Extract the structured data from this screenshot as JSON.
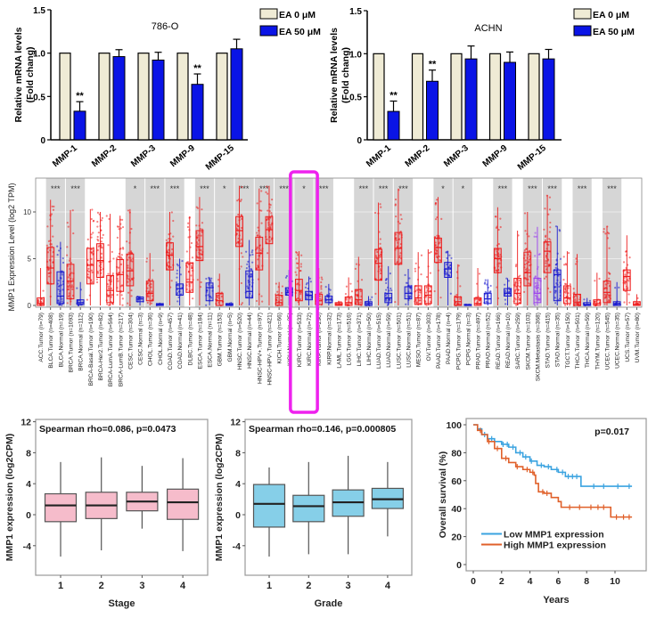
{
  "colors": {
    "ea0": "#efebd5",
    "ea50": "#0a14e6",
    "tumor": "#ee1c1c",
    "normal": "#1a1ad0",
    "metastasis": "#9b40ee",
    "highlight": "#ee22ee",
    "pink": "#f6bccb",
    "blue_box": "#86cfe8",
    "km_low": "#3aa3e0",
    "km_high": "#e0602a"
  },
  "chart_data": [
    {
      "type": "bar",
      "title": "786-O",
      "ylabel": "Relative mRNA levels\n(Fold chang)",
      "ylim": [
        0,
        1.5
      ],
      "yticks": [
        "0",
        "0.5",
        "1.0",
        "1.5"
      ],
      "categories": [
        "MMP-1",
        "MMP-2",
        "MMP-3",
        "MMP-9",
        "MMP-15"
      ],
      "series": [
        {
          "name": "EA 0 μM",
          "values": [
            1,
            1,
            1,
            1,
            1
          ]
        },
        {
          "name": "EA 50 μM",
          "values": [
            0.33,
            0.96,
            0.92,
            0.64,
            1.05
          ],
          "errors": [
            0.11,
            0.08,
            0.09,
            0.12,
            0.11
          ]
        }
      ],
      "annotations": [
        "**",
        "",
        "",
        "**",
        ""
      ]
    },
    {
      "type": "bar",
      "title": "ACHN",
      "ylabel": "Relative mRNA levels\n(Fold chang)",
      "ylim": [
        0,
        1.5
      ],
      "yticks": [
        "0",
        "0.5",
        "1.0",
        "1.5"
      ],
      "categories": [
        "MMP-1",
        "MMP-2",
        "MMP-3",
        "MMP-9",
        "MMP-15"
      ],
      "series": [
        {
          "name": "EA 0 μM",
          "values": [
            1,
            1,
            1,
            1,
            1
          ]
        },
        {
          "name": "EA 50 μM",
          "values": [
            0.33,
            0.68,
            0.94,
            0.9,
            0.94
          ],
          "errors": [
            0.12,
            0.13,
            0.15,
            0.12,
            0.11
          ]
        }
      ],
      "annotations": [
        "**",
        "**",
        "",
        "",
        ""
      ]
    },
    {
      "type": "box",
      "ylabel": "MMP1 Expression Level (log2 TPM)",
      "ylim": [
        0,
        13
      ],
      "yticks": [
        "0",
        "5",
        "10"
      ],
      "categories": [
        "ACC.Tumor (n=79)",
        "BLCA.Tumor (n=408)",
        "BLCA.Normal (n=19)",
        "BRCA.Tumor (n=1093)",
        "BRCA.Normal (n=112)",
        "BRCA-Basal.Tumor (n=190)",
        "BRCA-Her2.Tumor (n=82)",
        "BRCA-LumA.Tumor (n=564)",
        "BRCA-LumB.Tumor (n=217)",
        "CESC.Tumor (n=304)",
        "CESC.Normal (n=3)",
        "CHOL.Tumor (n=36)",
        "CHOL.Normal (n=9)",
        "COAD.Tumor (n=457)",
        "COAD.Normal (n=41)",
        "DLBC.Tumor (n=48)",
        "ESCA.Tumor (n=184)",
        "ESCA.Normal (n=11)",
        "GBM.Tumor (n=153)",
        "GBM.Normal (n=5)",
        "HNSC.Tumor (n=520)",
        "HNSC.Normal (n=44)",
        "HNSC-HPV+.Tumor (n=97)",
        "HNSC-HPV-.Tumor (n=421)",
        "KICH.Tumor (n=66)",
        "KICH.Normal (n=25)",
        "KIRC.Tumor (n=533)",
        "KIRC.Normal (n=72)",
        "KIRP.Tumor (n=290)",
        "KIRP.Normal (n=32)",
        "LAML.Tumor (n=173)",
        "LGG.Tumor (n=516)",
        "LIHC.Tumor (n=371)",
        "LIHC.Normal (n=50)",
        "LUAD.Tumor (n=515)",
        "LUAD.Normal (n=59)",
        "LUSC.Tumor (n=501)",
        "LUSC.Normal (n=51)",
        "MESO.Tumor (n=87)",
        "OV.Tumor (n=303)",
        "PAAD.Tumor (n=178)",
        "PAAD.Normal (n=4)",
        "PCPG.Tumor (n=179)",
        "PCPG.Normal (n=3)",
        "PRAD.Tumor (n=497)",
        "PRAD.Normal (n=52)",
        "READ.Tumor (n=166)",
        "READ.Normal (n=10)",
        "SARC.Tumor (n=259)",
        "SKCM.Tumor (n=103)",
        "SKCM.Metastasis (n=368)",
        "STAD.Tumor (n=415)",
        "STAD.Normal (n=35)",
        "TGCT.Tumor (n=150)",
        "THCA.Tumor (n=501)",
        "THCA.Normal (n=59)",
        "THYM.Tumor (n=120)",
        "UCEC.Tumor (n=545)",
        "UCEC.Normal (n=35)",
        "UCS.Tumor (n=57)",
        "UVM.Tumor (n=80)"
      ],
      "median": [
        0.2,
        4,
        1,
        2.6,
        0.3,
        4.3,
        4.8,
        1.6,
        3.3,
        3.7,
        0.7,
        1.3,
        0.1,
        5.4,
        1.8,
        2.5,
        6.3,
        1.9,
        0.5,
        0.1,
        8,
        1.5,
        5.6,
        8.1,
        0.3,
        1.4,
        1.6,
        1.1,
        0.5,
        0.6,
        0.1,
        0.3,
        0.6,
        0.2,
        4.5,
        0.8,
        6.1,
        1.3,
        0.8,
        1.1,
        6.2,
        3.9,
        0.4,
        0,
        0.2,
        0.7,
        5,
        1.3,
        1.3,
        3.5,
        1.3,
        5.8,
        3.3,
        0.8,
        0.3,
        0.1,
        0.2,
        1.4,
        0.2,
        3.1,
        0.1
      ],
      "q1": [
        0,
        2.3,
        0.2,
        0.7,
        0.1,
        2.3,
        3,
        0.3,
        1.5,
        2.1,
        0.4,
        0.5,
        0,
        3.8,
        1.1,
        1.4,
        4.8,
        0.5,
        0,
        0,
        6.3,
        0.8,
        3.8,
        6.6,
        0,
        1.1,
        0.5,
        0.6,
        0.1,
        0.3,
        0,
        0,
        0.1,
        0,
        2.7,
        0.3,
        4.4,
        0.7,
        0.1,
        0.2,
        4.6,
        3,
        0,
        0,
        0,
        0.2,
        3.5,
        1,
        0.2,
        2.1,
        0.3,
        3.5,
        0.5,
        0.2,
        0,
        0,
        0,
        0.3,
        0,
        1.6,
        0
      ],
      "q3": [
        0.8,
        6.2,
        3.6,
        4.4,
        0.6,
        6.1,
        6.6,
        3.2,
        4.9,
        5.5,
        0.9,
        2.6,
        0.2,
        6.7,
        2.3,
        4.5,
        8,
        2.4,
        1.3,
        0.2,
        9.5,
        3.7,
        7.3,
        9.5,
        1.1,
        1.9,
        2.8,
        1.5,
        1.2,
        1,
        0.3,
        0.9,
        1.7,
        0.4,
        6,
        1.3,
        7.8,
        2,
        2.1,
        2.1,
        7.2,
        4.6,
        0.9,
        0.1,
        0.8,
        1.3,
        6.1,
        1.8,
        2.9,
        5.7,
        2.9,
        6.8,
        3.8,
        2.1,
        1.2,
        0.3,
        0.6,
        2.6,
        0.4,
        3.8,
        0.4
      ],
      "max": [
        4,
        11.3,
        6.8,
        10.2,
        2.5,
        10.3,
        10,
        9.8,
        9.6,
        10.3,
        1,
        5.6,
        0.3,
        10,
        5,
        9.5,
        11.6,
        3,
        3.4,
        0.3,
        12.8,
        7,
        12.5,
        12.8,
        2.5,
        3.8,
        5.8,
        3.1,
        4,
        2.3,
        0.5,
        3,
        5.2,
        1,
        11,
        4.2,
        12.5,
        3.9,
        5.7,
        6,
        11.6,
        5.8,
        4.4,
        0.1,
        4,
        2.8,
        10.5,
        2.9,
        8,
        10,
        8.4,
        11.8,
        8.5,
        5.8,
        5.5,
        0.8,
        3.5,
        8.5,
        2.5,
        7.5,
        1.2
      ],
      "sample_type": [
        "Tumor",
        "Tumor",
        "Normal",
        "Tumor",
        "Normal",
        "Tumor",
        "Tumor",
        "Tumor",
        "Tumor",
        "Tumor",
        "Normal",
        "Tumor",
        "Normal",
        "Tumor",
        "Normal",
        "Tumor",
        "Tumor",
        "Normal",
        "Tumor",
        "Normal",
        "Tumor",
        "Normal",
        "Tumor",
        "Tumor",
        "Tumor",
        "Normal",
        "Tumor",
        "Normal",
        "Tumor",
        "Normal",
        "Tumor",
        "Tumor",
        "Tumor",
        "Normal",
        "Tumor",
        "Normal",
        "Tumor",
        "Normal",
        "Tumor",
        "Tumor",
        "Tumor",
        "Normal",
        "Tumor",
        "Normal",
        "Tumor",
        "Normal",
        "Tumor",
        "Normal",
        "Tumor",
        "Tumor",
        "Metastasis",
        "Tumor",
        "Normal",
        "Tumor",
        "Tumor",
        "Normal",
        "Tumor",
        "Tumor",
        "Normal",
        "Tumor",
        "Tumor"
      ],
      "significance": [
        {
          "first": "BLCA.Tumor (n=408)",
          "label": "***"
        },
        {
          "first": "BRCA.Tumor (n=1093)",
          "label": "***"
        },
        {
          "first": "CESC.Tumor (n=304)",
          "label": "*"
        },
        {
          "first": "CHOL.Tumor (n=36)",
          "label": "***"
        },
        {
          "first": "COAD.Tumor (n=457)",
          "label": "***"
        },
        {
          "first": "ESCA.Tumor (n=184)",
          "label": "***"
        },
        {
          "first": "GBM.Tumor (n=153)",
          "label": "*"
        },
        {
          "first": "HNSC.Tumor (n=520)",
          "label": "***"
        },
        {
          "first": "HNSC-HPV+.Tumor (n=97)",
          "label": "***"
        },
        {
          "first": "KICH.Tumor (n=66)",
          "label": "***"
        },
        {
          "first": "KIRC.Tumor (n=533)",
          "label": "*"
        },
        {
          "first": "KIRP.Tumor (n=290)",
          "label": "***"
        },
        {
          "first": "LIHC.Tumor (n=371)",
          "label": "***"
        },
        {
          "first": "LUAD.Tumor (n=515)",
          "label": "***"
        },
        {
          "first": "LUSC.Tumor (n=501)",
          "label": "***"
        },
        {
          "first": "PAAD.Tumor (n=178)",
          "label": "*"
        },
        {
          "first": "PCPG.Tumor (n=179)",
          "label": "*"
        },
        {
          "first": "READ.Tumor (n=166)",
          "label": "***"
        },
        {
          "first": "SKCM.Tumor (n=103)",
          "label": "***"
        },
        {
          "first": "STAD.Tumor (n=415)",
          "label": "***"
        },
        {
          "first": "THCA.Tumor (n=501)",
          "label": "***"
        },
        {
          "first": "UCEC.Tumor (n=545)",
          "label": "***"
        }
      ],
      "highlighted": [
        "KIRC.Tumor (n=533)",
        "KIRC.Normal (n=72)"
      ]
    },
    {
      "type": "box",
      "annotation": "Spearman rho=0.086, p=0.0473",
      "xlabel": "Stage",
      "ylabel": "MMP1 expression (log2CPM)",
      "ylim": [
        -7,
        12
      ],
      "yticks": [
        "-4",
        "0",
        "4",
        "8",
        "12"
      ],
      "categories": [
        "1",
        "2",
        "3",
        "4"
      ],
      "min": [
        -5.4,
        -4.6,
        -1.8,
        -4.7
      ],
      "q1": [
        -0.9,
        -0.5,
        0.5,
        -0.6
      ],
      "median": [
        1.2,
        1.2,
        1.7,
        1.6
      ],
      "q3": [
        2.7,
        2.9,
        2.9,
        3.3
      ],
      "max": [
        6.8,
        7.4,
        6.3,
        7.3
      ]
    },
    {
      "type": "box",
      "annotation": "Spearman rho=0.146, p=0.000805",
      "xlabel": "Grade",
      "ylabel": "MMP1 expression (log2CPM)",
      "ylim": [
        -7,
        12
      ],
      "yticks": [
        "-4",
        "0",
        "4",
        "8",
        "12"
      ],
      "categories": [
        "1",
        "2",
        "3",
        "4"
      ],
      "min": [
        -5.4,
        -5.1,
        -5.1,
        -2.8
      ],
      "q1": [
        -1.6,
        -0.9,
        -0.2,
        0.8
      ],
      "median": [
        1.4,
        1.1,
        1.6,
        2.0
      ],
      "q3": [
        3.9,
        2.5,
        3.2,
        3.4
      ],
      "max": [
        6.1,
        6.8,
        7.6,
        6.8
      ]
    },
    {
      "type": "line",
      "annotation": "p=0.017",
      "xlabel": "Years",
      "ylabel": "Overall survival (%)",
      "xlim": [
        0,
        11.5
      ],
      "ylim": [
        0,
        100
      ],
      "xticks": [
        "0",
        "2",
        "4",
        "6",
        "8",
        "10"
      ],
      "yticks": [
        "0",
        "20",
        "40",
        "60",
        "80",
        "100"
      ],
      "series": [
        {
          "name": "Low MMP1 expression",
          "x": [
            0,
            0.3,
            0.6,
            1,
            1.5,
            2,
            2.5,
            3,
            3.5,
            4,
            4.5,
            5,
            5.5,
            6,
            6.5,
            7.6,
            7.6,
            11.2
          ],
          "y": [
            100,
            97,
            93,
            90,
            88,
            86,
            84,
            80,
            77,
            74,
            71,
            70,
            68,
            66,
            63,
            63,
            56,
            56
          ],
          "censored_x": [
            0.8,
            1.3,
            2.1,
            2.4,
            2.8,
            3.3,
            3.7,
            4.1,
            4.8,
            5.3,
            5.9,
            6.3,
            6.7,
            7,
            7.3,
            8.5,
            9.2,
            10.2,
            11
          ]
        },
        {
          "name": "High MMP1 expression",
          "x": [
            0,
            0.3,
            0.6,
            1,
            1.5,
            2,
            2.5,
            3,
            3.5,
            4,
            4.3,
            4.4,
            4.6,
            5,
            5.5,
            6,
            6.2,
            9.7,
            9.7,
            11.2
          ],
          "y": [
            100,
            96,
            93,
            88,
            83,
            76,
            73,
            70,
            68,
            66,
            64,
            58,
            52,
            51,
            48,
            45,
            41,
            41,
            34,
            34
          ],
          "censored_x": [
            0.5,
            1.1,
            1.7,
            2.3,
            3.1,
            3.8,
            4.2,
            4.9,
            5.2,
            6.8,
            7.5,
            8.3,
            8.8,
            9.2,
            10.1,
            10.6,
            11
          ]
        }
      ]
    }
  ]
}
